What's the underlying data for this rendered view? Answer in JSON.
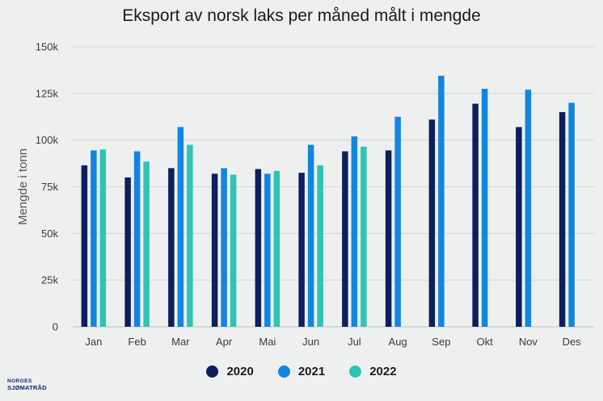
{
  "colors": {
    "background": "#eef0ef",
    "grid": "#d4d6d5",
    "series": [
      "#0d1f5c",
      "#1185e0",
      "#2ec4b6"
    ]
  },
  "logo": {
    "line1": "NORGES",
    "line2": "SJØMATRÅD"
  },
  "chart_data": {
    "type": "bar",
    "title": "Eksport av norsk laks per måned målt i mengde",
    "xlabel": "",
    "ylabel": "Mengde i tonn",
    "ylim": [
      0,
      150000
    ],
    "yticks": [
      0,
      25000,
      50000,
      75000,
      100000,
      125000,
      150000
    ],
    "ytick_labels": [
      "0",
      "25k",
      "50k",
      "75k",
      "100k",
      "125k",
      "150k"
    ],
    "grid": true,
    "legend_position": "bottom",
    "categories": [
      "Jan",
      "Feb",
      "Mar",
      "Apr",
      "Mai",
      "Jun",
      "Jul",
      "Aug",
      "Sep",
      "Okt",
      "Nov",
      "Des"
    ],
    "series": [
      {
        "name": "2020",
        "values": [
          86500,
          80000,
          85000,
          82000,
          84500,
          82500,
          94000,
          94500,
          111000,
          119500,
          107000,
          115000
        ]
      },
      {
        "name": "2021",
        "values": [
          94500,
          94000,
          107000,
          85000,
          82000,
          97500,
          102000,
          112500,
          134500,
          127500,
          127000,
          120000
        ]
      },
      {
        "name": "2022",
        "values": [
          95000,
          88500,
          97500,
          81500,
          83500,
          86500,
          96500,
          null,
          null,
          null,
          null,
          null
        ]
      }
    ]
  }
}
